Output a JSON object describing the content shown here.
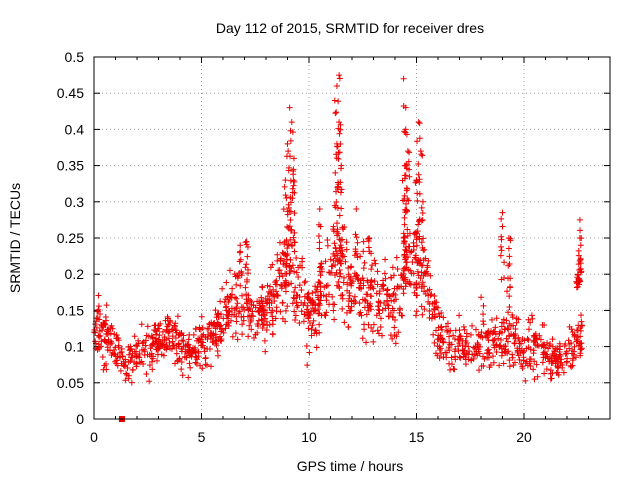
{
  "chart_data": {
    "type": "scatter",
    "title": "Day 112 of 2015, SRMTID for receiver dres",
    "xlabel": "GPS time / hours",
    "ylabel": "SRMTID / TECUs",
    "xlim": [
      0,
      24
    ],
    "ylim": [
      0,
      0.5
    ],
    "xticks": [
      "0",
      "5",
      "10",
      "15",
      "20"
    ],
    "yticks": [
      "0",
      "0.05",
      "0.1",
      "0.15",
      "0.2",
      "0.25",
      "0.3",
      "0.35",
      "0.4",
      "0.45",
      "0.5"
    ],
    "grid": true,
    "marker": "plus",
    "series_color": "#ee0000",
    "series": [
      {
        "name": "SRMTID",
        "trend": [
          [
            0.0,
            0.13,
            0.03
          ],
          [
            0.5,
            0.12,
            0.04
          ],
          [
            1.0,
            0.1,
            0.03
          ],
          [
            1.5,
            0.08,
            0.025
          ],
          [
            2.0,
            0.085,
            0.03
          ],
          [
            2.5,
            0.1,
            0.035
          ],
          [
            3.0,
            0.11,
            0.03
          ],
          [
            3.5,
            0.12,
            0.03
          ],
          [
            4.0,
            0.1,
            0.035
          ],
          [
            4.5,
            0.09,
            0.03
          ],
          [
            5.0,
            0.1,
            0.03
          ],
          [
            5.5,
            0.11,
            0.03
          ],
          [
            6.0,
            0.14,
            0.035
          ],
          [
            6.5,
            0.16,
            0.04
          ],
          [
            7.0,
            0.15,
            0.035
          ],
          [
            7.5,
            0.14,
            0.035
          ],
          [
            8.0,
            0.15,
            0.04
          ],
          [
            8.5,
            0.17,
            0.05
          ],
          [
            9.0,
            0.22,
            0.08
          ],
          [
            9.5,
            0.19,
            0.06
          ],
          [
            10.0,
            0.14,
            0.05
          ],
          [
            10.5,
            0.16,
            0.05
          ],
          [
            11.0,
            0.2,
            0.07
          ],
          [
            11.5,
            0.22,
            0.08
          ],
          [
            12.0,
            0.17,
            0.05
          ],
          [
            12.5,
            0.18,
            0.05
          ],
          [
            13.0,
            0.16,
            0.05
          ],
          [
            13.5,
            0.17,
            0.05
          ],
          [
            14.0,
            0.16,
            0.05
          ],
          [
            14.5,
            0.2,
            0.07
          ],
          [
            15.0,
            0.21,
            0.06
          ],
          [
            15.5,
            0.19,
            0.05
          ],
          [
            16.0,
            0.12,
            0.035
          ],
          [
            16.5,
            0.11,
            0.03
          ],
          [
            17.0,
            0.1,
            0.035
          ],
          [
            17.5,
            0.09,
            0.03
          ],
          [
            18.0,
            0.11,
            0.04
          ],
          [
            18.5,
            0.1,
            0.035
          ],
          [
            19.0,
            0.12,
            0.05
          ],
          [
            19.5,
            0.11,
            0.04
          ],
          [
            20.0,
            0.09,
            0.03
          ],
          [
            20.5,
            0.11,
            0.04
          ],
          [
            21.0,
            0.09,
            0.03
          ],
          [
            21.5,
            0.08,
            0.03
          ],
          [
            22.0,
            0.09,
            0.03
          ],
          [
            22.5,
            0.11,
            0.03
          ],
          [
            22.7,
            0.12,
            0.03
          ]
        ],
        "peaks": [
          [
            9.1,
            0.43
          ],
          [
            9.2,
            0.41
          ],
          [
            9.0,
            0.38
          ],
          [
            9.3,
            0.36
          ],
          [
            8.9,
            0.33
          ],
          [
            11.4,
            0.475
          ],
          [
            11.3,
            0.46
          ],
          [
            11.2,
            0.44
          ],
          [
            11.4,
            0.41
          ],
          [
            11.3,
            0.38
          ],
          [
            11.5,
            0.35
          ],
          [
            14.4,
            0.47
          ],
          [
            14.5,
            0.43
          ],
          [
            14.5,
            0.4
          ],
          [
            14.6,
            0.37
          ],
          [
            14.5,
            0.35
          ],
          [
            15.1,
            0.41
          ],
          [
            15.2,
            0.37
          ],
          [
            15.0,
            0.33
          ],
          [
            15.3,
            0.3
          ],
          [
            19.0,
            0.285
          ],
          [
            19.3,
            0.25
          ],
          [
            22.6,
            0.275
          ],
          [
            22.6,
            0.25
          ],
          [
            22.5,
            0.2
          ],
          [
            6.8,
            0.24
          ],
          [
            7.1,
            0.245
          ],
          [
            10.5,
            0.29
          ],
          [
            12.2,
            0.29
          ],
          [
            12.8,
            0.25
          ]
        ],
        "n_points": 1500
      }
    ],
    "annotations": [
      {
        "x": 1.3,
        "y": 0.0,
        "marker": "square"
      }
    ]
  }
}
